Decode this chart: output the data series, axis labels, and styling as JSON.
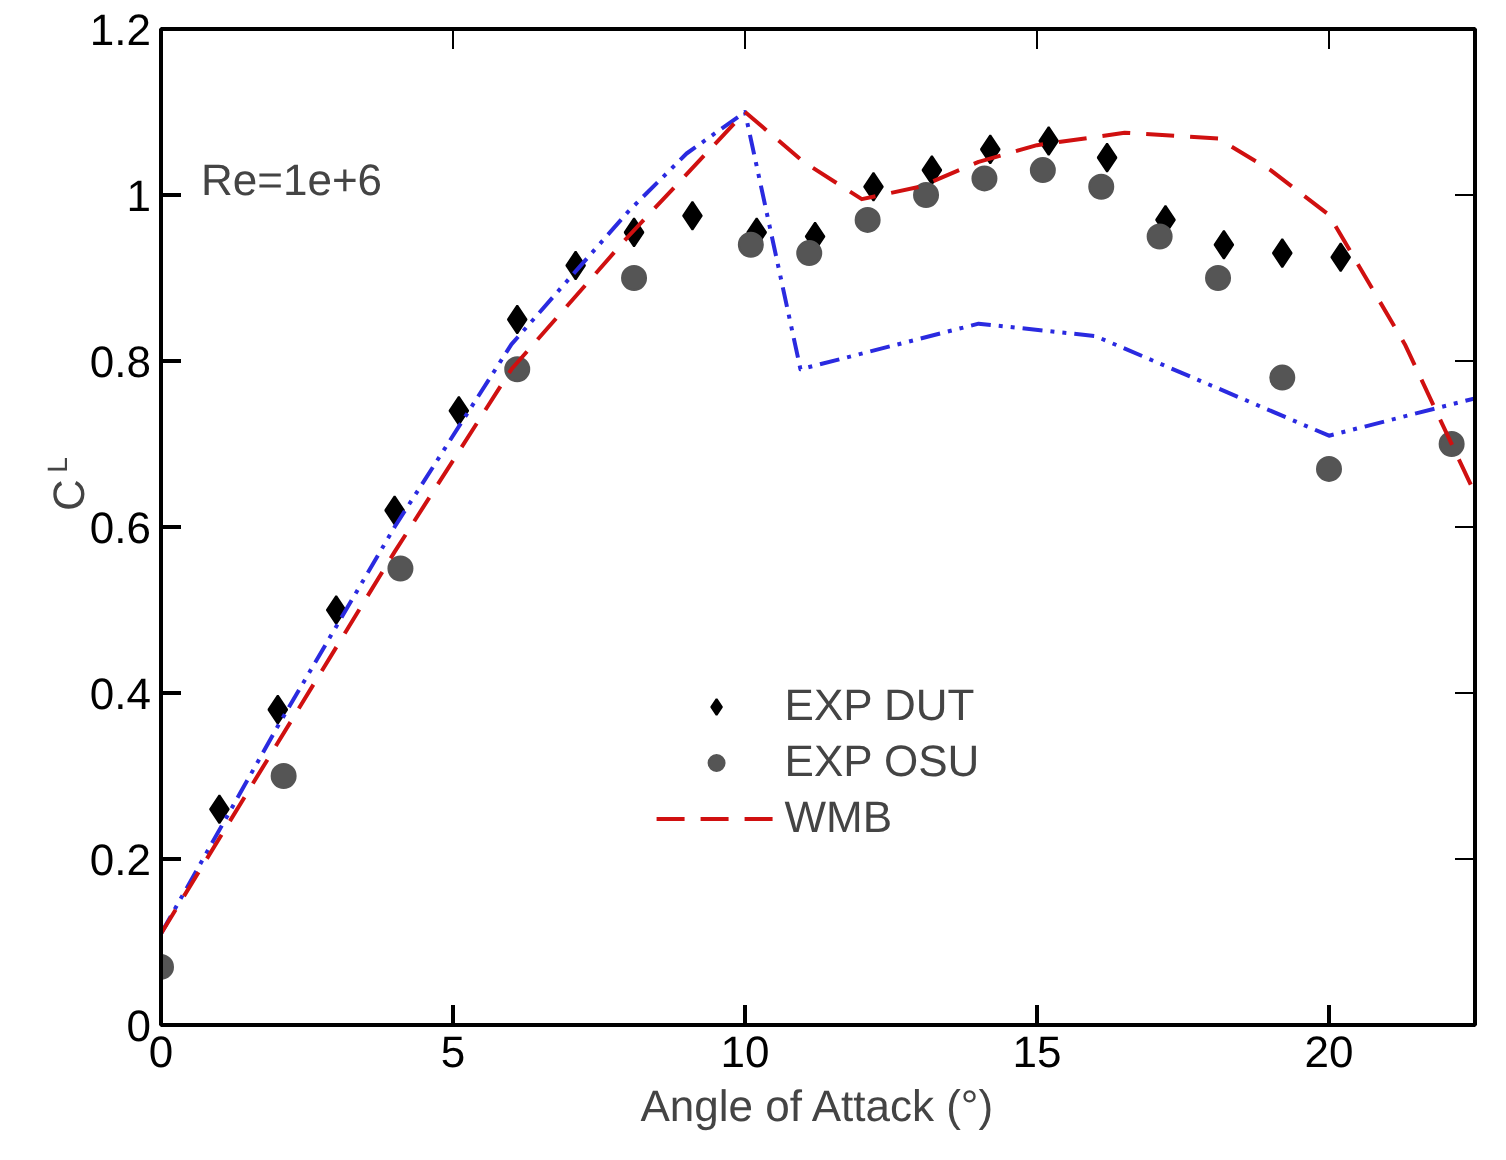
{
  "chart_data": {
    "type": "scatter",
    "xlabel": "Angle of Attack (°)",
    "ylabel": "C$_{L}$",
    "annotations": [
      "Re=1e+6"
    ],
    "xlim": [
      0,
      22.5
    ],
    "ylim": [
      0,
      1.2
    ],
    "xticks": [
      0,
      5,
      10,
      15,
      20
    ],
    "yticks": [
      0,
      0.2,
      0.4,
      0.6,
      0.8,
      1,
      1.2
    ],
    "grid": false,
    "legend": "bottom",
    "series": [
      {
        "name": "EXP DUT",
        "type": "scatter",
        "marker": "diamond",
        "color": "#000000",
        "x": [
          1,
          2,
          3,
          4,
          5.1,
          6.1,
          7.1,
          8.1,
          9.1,
          10.2,
          11.2,
          12.2,
          13.2,
          14.2,
          15.2,
          16.2,
          17.2,
          18.2,
          19.2,
          20.2
        ],
        "values": [
          0.26,
          0.38,
          0.5,
          0.62,
          0.74,
          0.85,
          0.915,
          0.955,
          0.975,
          0.955,
          0.95,
          1.01,
          1.03,
          1.055,
          1.065,
          1.045,
          0.97,
          0.94,
          0.93,
          0.925
        ]
      },
      {
        "name": "EXP OSU",
        "type": "scatter",
        "marker": "circle",
        "color": "#555555",
        "x": [
          0,
          2.1,
          4.1,
          6.1,
          8.1,
          10.1,
          11.1,
          12.1,
          13.1,
          14.1,
          15.1,
          16.1,
          17.1,
          18.1,
          19.2,
          20.0,
          22.1
        ],
        "values": [
          0.07,
          0.3,
          0.55,
          0.79,
          0.9,
          0.94,
          0.93,
          0.97,
          1.0,
          1.02,
          1.03,
          1.01,
          0.95,
          0.9,
          0.78,
          0.67,
          0.7
        ]
      },
      {
        "type": "line",
        "line_style": "dashdot",
        "color": "#2a2ae0",
        "x": [
          0,
          2,
          4,
          6,
          8,
          9,
          10,
          10.95,
          14,
          16,
          20,
          22.5
        ],
        "values": [
          0.11,
          0.36,
          0.6,
          0.82,
          0.98,
          1.05,
          1.1,
          0.79,
          0.845,
          0.83,
          0.71,
          0.755
        ]
      },
      {
        "name": "WMB",
        "type": "line",
        "line_style": "dashed",
        "color": "#d01010",
        "x": [
          0,
          2,
          4,
          6,
          8,
          10,
          11,
          12,
          13,
          14,
          15,
          16.5,
          18.1,
          19,
          20,
          21.3,
          22.5
        ],
        "values": [
          0.11,
          0.34,
          0.57,
          0.79,
          0.95,
          1.1,
          1.04,
          0.995,
          1.01,
          1.04,
          1.06,
          1.075,
          1.068,
          1.03,
          0.976,
          0.82,
          0.64
        ]
      }
    ]
  }
}
